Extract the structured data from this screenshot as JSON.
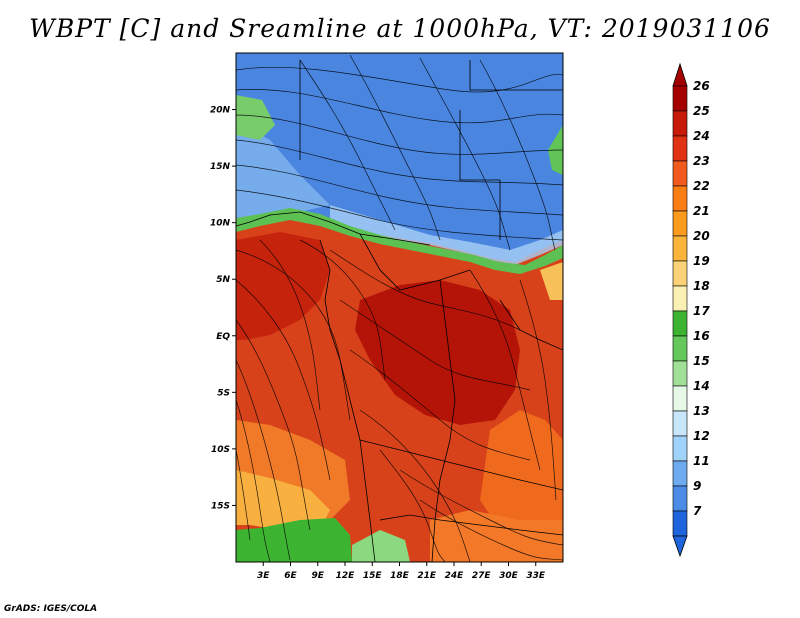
{
  "title": "WBPT [C] and Sreamline at 1000hPa, VT: 2019031106",
  "credit": "GrADS: IGES/COLA",
  "map": {
    "lon_range": [
      0,
      36
    ],
    "lat_range": [
      -20,
      25
    ],
    "lon_ticks": [
      "3E",
      "6E",
      "9E",
      "12E",
      "15E",
      "18E",
      "21E",
      "24E",
      "27E",
      "30E",
      "33E"
    ],
    "lon_tick_values": [
      3,
      6,
      9,
      12,
      15,
      18,
      21,
      24,
      27,
      30,
      33
    ],
    "lat_ticks": [
      "20N",
      "15N",
      "10N",
      "5N",
      "EQ",
      "5S",
      "10S",
      "15S"
    ],
    "lat_tick_values": [
      20,
      15,
      10,
      5,
      0,
      -5,
      -10,
      -15
    ]
  },
  "colorbar": {
    "levels": [
      "26",
      "25",
      "24",
      "23",
      "22",
      "21",
      "20",
      "19",
      "18",
      "17",
      "16",
      "15",
      "14",
      "13",
      "12",
      "11",
      "9",
      "7"
    ],
    "colors": [
      "#a50000",
      "#c81a0a",
      "#e03214",
      "#f05a1e",
      "#fa7d14",
      "#fa9b1e",
      "#fab43c",
      "#fad278",
      "#faf0b4",
      "#3cb432",
      "#64c85a",
      "#a0e096",
      "#e6f8e6",
      "#c8e6fa",
      "#a0d2fa",
      "#6eaaf0",
      "#4b8ce6",
      "#1e64dc"
    ]
  }
}
